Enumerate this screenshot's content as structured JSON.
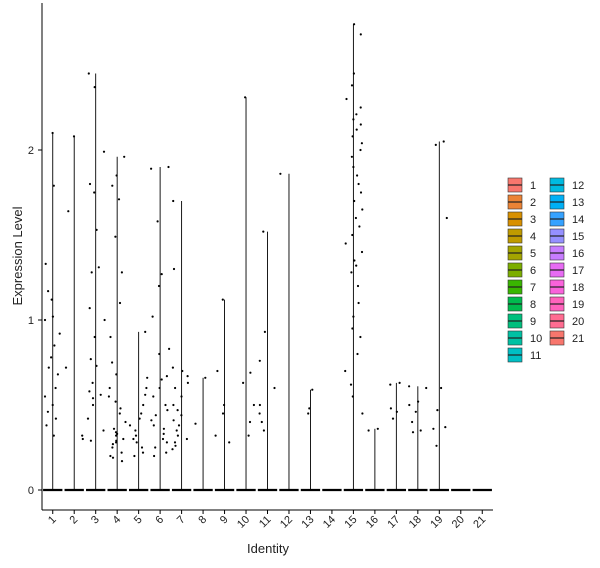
{
  "chart_data": {
    "type": "violin",
    "title": "",
    "xlabel": "Identity",
    "ylabel": "Expression Level",
    "ylim": [
      -0.12,
      2.8
    ],
    "yticks": [
      0,
      1,
      2
    ],
    "categories": [
      "1",
      "2",
      "3",
      "4",
      "5",
      "6",
      "7",
      "8",
      "9",
      "10",
      "11",
      "12",
      "13",
      "14",
      "15",
      "16",
      "17",
      "18",
      "19",
      "20",
      "21"
    ],
    "colors": [
      "#F8766D",
      "#E68613",
      "#CD9600",
      "#ABA300",
      "#7CAE00",
      "#0CB702",
      "#00BE67",
      "#00C19A",
      "#00BFC4",
      "#00B8E7",
      "#00A9FF",
      "#8494FF",
      "#C77CFF",
      "#ED68ED",
      "#FF61CC",
      "#FF68A1",
      "#F8766D",
      "#E68613",
      "#CD9600",
      "#ABA300",
      "#7CAE00"
    ],
    "legend": {
      "position": "right",
      "columns": [
        [
          {
            "label": "1",
            "color": "#F8766D"
          },
          {
            "label": "2",
            "color": "#EB8335"
          },
          {
            "label": "3",
            "color": "#D89000"
          },
          {
            "label": "4",
            "color": "#C09B00"
          },
          {
            "label": "5",
            "color": "#A3A500"
          },
          {
            "label": "6",
            "color": "#7CAE00"
          },
          {
            "label": "7",
            "color": "#39B600"
          },
          {
            "label": "8",
            "color": "#00BB4E"
          },
          {
            "label": "9",
            "color": "#00BF7D"
          },
          {
            "label": "10",
            "color": "#00C1A3"
          },
          {
            "label": "11",
            "color": "#00BFC4"
          }
        ],
        [
          {
            "label": "12",
            "color": "#00BAE0"
          },
          {
            "label": "13",
            "color": "#00B0F6"
          },
          {
            "label": "14",
            "color": "#35A2FF"
          },
          {
            "label": "15",
            "color": "#9590FF"
          },
          {
            "label": "16",
            "color": "#C77CFF"
          },
          {
            "label": "17",
            "color": "#E76BF3"
          },
          {
            "label": "18",
            "color": "#FA62DB"
          },
          {
            "label": "19",
            "color": "#FF62BC"
          },
          {
            "label": "20",
            "color": "#FF6C91"
          },
          {
            "label": "21",
            "color": "#F8766D"
          }
        ]
      ]
    },
    "max_values": [
      2.1,
      2.08,
      2.45,
      1.96,
      0.93,
      1.9,
      1.7,
      0.66,
      1.12,
      2.31,
      1.52,
      1.86,
      0.59,
      0.0,
      2.74,
      0.36,
      0.63,
      0.61,
      2.05,
      0.0,
      0.0
    ],
    "points": [
      [
        2.1,
        1.79,
        1.33,
        1.17,
        1.12,
        1.02,
        1.0,
        0.92,
        0.85,
        0.78,
        0.72,
        0.68,
        0.6,
        0.55,
        0.5,
        0.46,
        0.42,
        0.38,
        0.32
      ],
      [
        2.08,
        1.64,
        0.72,
        0.32,
        0.3
      ],
      [
        2.45,
        2.37,
        1.99,
        1.8,
        1.75,
        1.53,
        1.31,
        1.28,
        1.07,
        1.0,
        0.9,
        0.77,
        0.73,
        0.63,
        0.58,
        0.56,
        0.54,
        0.5,
        0.42,
        0.35,
        0.29
      ],
      [
        1.96,
        1.85,
        1.79,
        1.71,
        1.49,
        1.28,
        1.1,
        0.9,
        0.75,
        0.68,
        0.6,
        0.55,
        0.52,
        0.48,
        0.45,
        0.4,
        0.36,
        0.34,
        0.33,
        0.32,
        0.3,
        0.29,
        0.28,
        0.27,
        0.25,
        0.22,
        0.2,
        0.19,
        0.17
      ],
      [
        0.93,
        0.66,
        0.6,
        0.56,
        0.5,
        0.45,
        0.42,
        0.38,
        0.35,
        0.32,
        0.3,
        0.28,
        0.25,
        0.22,
        0.2
      ],
      [
        1.9,
        1.89,
        1.58,
        1.27,
        1.2,
        1.02,
        0.83,
        0.8,
        0.67,
        0.65,
        0.6,
        0.55,
        0.5,
        0.47,
        0.44,
        0.41,
        0.38,
        0.36,
        0.33,
        0.3,
        0.28,
        0.25,
        0.22,
        0.2
      ],
      [
        1.7,
        1.3,
        0.72,
        0.7,
        0.67,
        0.63,
        0.6,
        0.55,
        0.5,
        0.47,
        0.44,
        0.41,
        0.38,
        0.35,
        0.32,
        0.3,
        0.28,
        0.26,
        0.24
      ],
      [
        0.66,
        0.39
      ],
      [
        1.12,
        0.7,
        0.5,
        0.45,
        0.32,
        0.28
      ],
      [
        2.31,
        0.69,
        0.63,
        0.5,
        0.4,
        0.32
      ],
      [
        1.52,
        0.93,
        0.76,
        0.6,
        0.5,
        0.45,
        0.4,
        0.35
      ],
      [
        1.86
      ],
      [
        0.59,
        0.48,
        0.45
      ],
      [],
      [
        2.74,
        2.68,
        2.45,
        2.38,
        2.3,
        2.25,
        2.21,
        2.18,
        2.15,
        2.12,
        2.08,
        2.04,
        2.0,
        1.96,
        1.9,
        1.85,
        1.8,
        1.75,
        1.7,
        1.65,
        1.6,
        1.55,
        1.5,
        1.45,
        1.4,
        1.35,
        1.32,
        1.28,
        1.2,
        1.1,
        1.02,
        0.95,
        0.9,
        0.8,
        0.7,
        0.62,
        0.55,
        0.45
      ],
      [
        0.36,
        0.35
      ],
      [
        0.63,
        0.62,
        0.48,
        0.46,
        0.42
      ],
      [
        0.61,
        0.6,
        0.52,
        0.5,
        0.46,
        0.4,
        0.35,
        0.34
      ],
      [
        2.05,
        2.03,
        1.6,
        0.6,
        0.47,
        0.37,
        0.36,
        0.26
      ],
      [],
      []
    ]
  }
}
